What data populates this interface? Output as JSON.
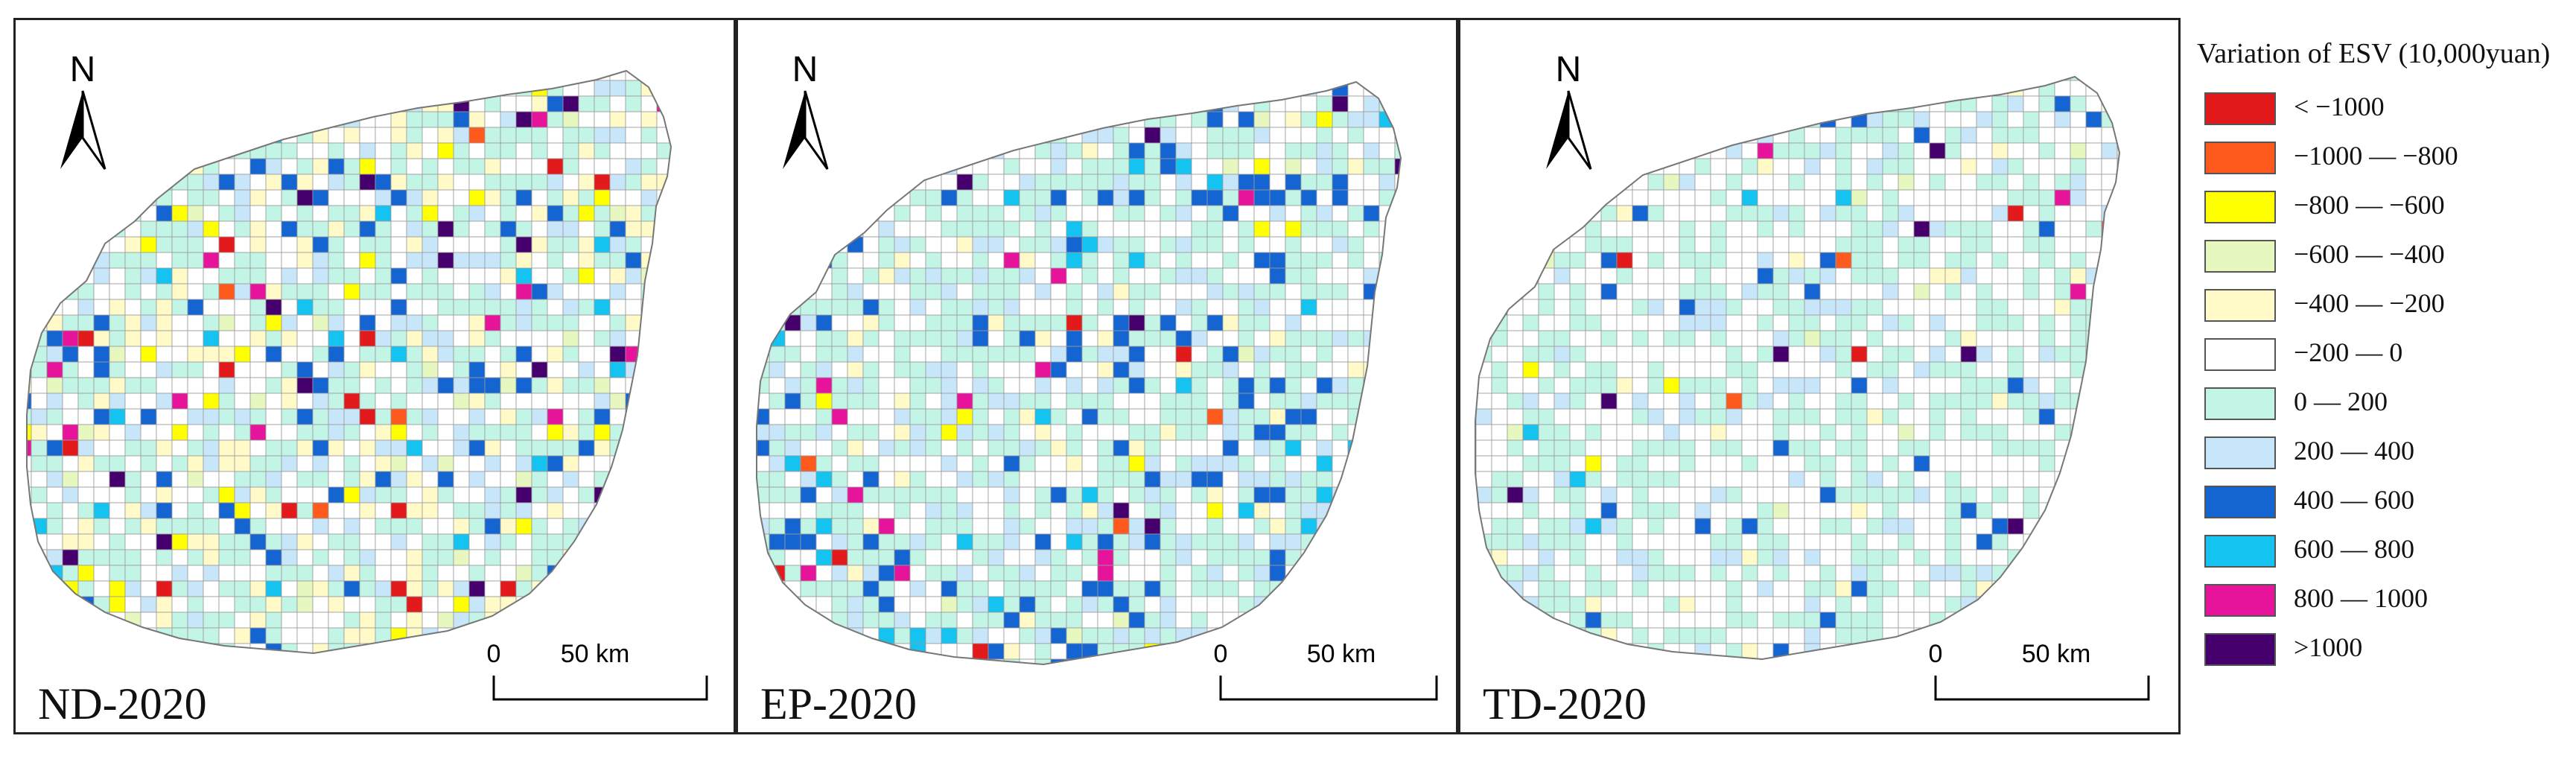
{
  "panels": [
    {
      "label": "ND-2020",
      "north_label": "N",
      "scale_zero": "0",
      "scale_end": "50 km"
    },
    {
      "label": "EP-2020",
      "north_label": "N",
      "scale_zero": "0",
      "scale_end": "50 km"
    },
    {
      "label": "TD-2020",
      "north_label": "N",
      "scale_zero": "0",
      "scale_end": "50 km"
    }
  ],
  "legend": {
    "title": "Variation of ESV (10,000yuan)",
    "classes": [
      {
        "label": "< −1000",
        "color": "#e31a1c"
      },
      {
        "label": "−1000 — −800",
        "color": "#ff5a1e"
      },
      {
        "label": "−800 — −600",
        "color": "#ffff00"
      },
      {
        "label": "−600 — −400",
        "color": "#e6f7c0"
      },
      {
        "label": "−400 — −200",
        "color": "#fffac8"
      },
      {
        "label": "−200 — 0",
        "color": "#ffffff"
      },
      {
        "label": "0 — 200",
        "color": "#c3f5e6"
      },
      {
        "label": "200 — 400",
        "color": "#c8e6fa"
      },
      {
        "label": "400 — 600",
        "color": "#1464d2"
      },
      {
        "label": "600 — 800",
        "color": "#14c3f0"
      },
      {
        "label": "800 — 1000",
        "color": "#e6149b"
      },
      {
        "label": ">1000",
        "color": "#46006e"
      }
    ]
  }
}
